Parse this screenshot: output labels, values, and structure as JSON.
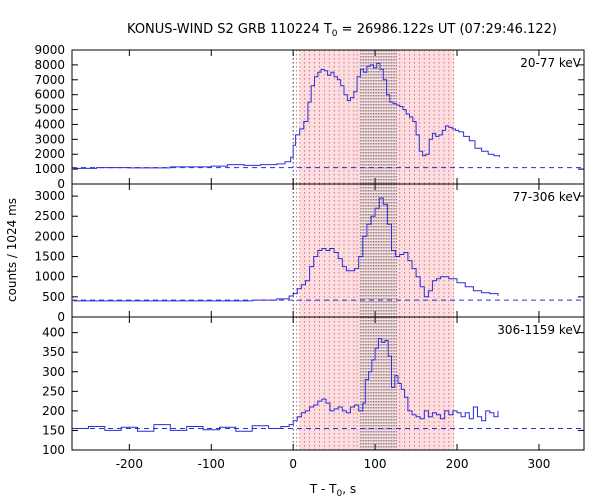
{
  "title": {
    "prefix": "KONUS-WIND S2 GRB 110224 T",
    "sub": "0",
    "suffix": " = 26986.122s UT (07:29:46.122)"
  },
  "ylabel": "counts / 1024 ms",
  "xlabel": {
    "prefix": "T - T",
    "sub": "0",
    "suffix": ", s"
  },
  "colors": {
    "series": "#2d2dd6",
    "background_line": "#2d2dd6",
    "shade": "#fcdde0",
    "dense_intervals": "#7a7a7a",
    "interval_lines": "#d05a6a",
    "zero_line": "#000000"
  },
  "chart_data": [
    {
      "type": "line",
      "title": "",
      "band": "20-77 keV",
      "xlabel": "",
      "ylabel": "",
      "xlim": [
        -270,
        355
      ],
      "ylim": [
        0,
        9000
      ],
      "yticks": [
        0,
        1000,
        2000,
        3000,
        4000,
        5000,
        6000,
        7000,
        8000,
        9000
      ],
      "xticks": [
        -200,
        -100,
        0,
        100,
        200,
        300
      ],
      "background_level": 1100,
      "series": [
        {
          "x": [
            -268,
            -240,
            -200,
            -150,
            -100,
            -80,
            -60,
            -40,
            -20,
            -10,
            -3,
            0,
            3,
            8,
            13,
            18,
            22,
            26,
            30,
            34,
            38,
            42,
            46,
            50,
            54,
            58,
            62,
            66,
            70,
            74,
            78,
            82,
            86,
            90,
            94,
            98,
            102,
            106,
            110,
            114,
            118,
            122,
            126,
            130,
            134,
            138,
            142,
            146,
            150,
            154,
            158,
            162,
            166,
            170,
            174,
            178,
            182,
            186,
            190,
            194,
            198,
            202,
            208,
            215,
            222,
            230,
            238,
            245,
            252
          ],
          "values": [
            1050,
            1100,
            1080,
            1150,
            1200,
            1300,
            1250,
            1300,
            1350,
            1500,
            1800,
            2600,
            3300,
            3700,
            4200,
            5500,
            6600,
            7200,
            7500,
            7700,
            7600,
            7300,
            7500,
            7200,
            7000,
            6600,
            6000,
            5600,
            5800,
            6200,
            7200,
            7700,
            7500,
            7900,
            8000,
            7800,
            8100,
            7700,
            7000,
            6000,
            5500,
            5400,
            5300,
            5200,
            5000,
            4700,
            4500,
            4200,
            3300,
            2200,
            1900,
            2000,
            3000,
            3400,
            3200,
            3300,
            3600,
            3900,
            3800,
            3700,
            3600,
            3500,
            3200,
            2900,
            2400,
            2200,
            2000,
            1900,
            1800
          ]
        }
      ]
    },
    {
      "type": "line",
      "title": "",
      "band": "77-306 keV",
      "xlabel": "",
      "ylabel": "",
      "xlim": [
        -270,
        355
      ],
      "ylim": [
        0,
        3300
      ],
      "yticks": [
        0,
        500,
        1000,
        1500,
        2000,
        2500,
        3000
      ],
      "xticks": [
        -200,
        -100,
        0,
        100,
        200,
        300
      ],
      "background_level": 420,
      "series": [
        {
          "x": [
            -268,
            -200,
            -100,
            -50,
            -20,
            -5,
            0,
            5,
            10,
            15,
            20,
            25,
            30,
            35,
            40,
            45,
            50,
            55,
            60,
            65,
            70,
            75,
            80,
            85,
            90,
            95,
            100,
            105,
            110,
            115,
            120,
            125,
            130,
            135,
            140,
            145,
            150,
            155,
            160,
            165,
            170,
            175,
            180,
            190,
            200,
            210,
            220,
            230,
            240,
            250
          ],
          "values": [
            400,
            400,
            400,
            420,
            450,
            520,
            580,
            700,
            800,
            900,
            1250,
            1500,
            1650,
            1700,
            1650,
            1700,
            1600,
            1450,
            1250,
            1150,
            1150,
            1200,
            1500,
            2000,
            2300,
            2500,
            2700,
            2950,
            2800,
            2300,
            1650,
            1500,
            1550,
            1600,
            1400,
            1200,
            1000,
            750,
            500,
            650,
            900,
            950,
            1000,
            950,
            850,
            750,
            650,
            600,
            580,
            520
          ]
        }
      ]
    },
    {
      "type": "line",
      "title": "",
      "band": "306-1159 keV",
      "xlabel": "T - T0, s",
      "ylabel": "",
      "xlim": [
        -270,
        355
      ],
      "ylim": [
        100,
        440
      ],
      "yticks": [
        100,
        150,
        200,
        250,
        300,
        350,
        400
      ],
      "xticks": [
        -200,
        -100,
        0,
        100,
        200,
        300
      ],
      "background_level": 155,
      "series": [
        {
          "x": [
            -268,
            -250,
            -230,
            -210,
            -190,
            -170,
            -150,
            -130,
            -110,
            -90,
            -70,
            -50,
            -30,
            -15,
            -5,
            0,
            5,
            10,
            15,
            20,
            25,
            30,
            35,
            40,
            45,
            50,
            55,
            60,
            65,
            70,
            75,
            80,
            85,
            88,
            92,
            96,
            100,
            104,
            108,
            112,
            116,
            120,
            124,
            128,
            132,
            136,
            140,
            145,
            150,
            155,
            160,
            165,
            170,
            175,
            180,
            185,
            190,
            195,
            200,
            205,
            210,
            215,
            220,
            225,
            230,
            235,
            240,
            245,
            250
          ],
          "values": [
            155,
            160,
            150,
            158,
            148,
            165,
            150,
            160,
            152,
            158,
            148,
            162,
            155,
            160,
            165,
            175,
            185,
            195,
            200,
            210,
            215,
            225,
            230,
            220,
            200,
            205,
            210,
            200,
            195,
            210,
            215,
            200,
            220,
            280,
            300,
            330,
            360,
            385,
            375,
            380,
            340,
            260,
            290,
            270,
            255,
            235,
            200,
            190,
            185,
            180,
            200,
            185,
            195,
            190,
            180,
            200,
            190,
            200,
            195,
            185,
            195,
            180,
            210,
            185,
            175,
            200,
            195,
            185,
            200
          ]
        }
      ]
    }
  ]
}
